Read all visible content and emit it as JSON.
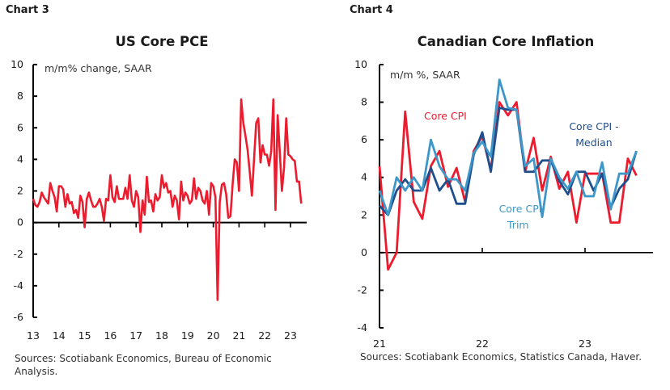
{
  "chart_data": [
    {
      "type": "line",
      "label": "Chart 3",
      "title": "US Core PCE",
      "ylabel": "m/m% change, SAAR",
      "xlabel": "",
      "ylim": [
        -6,
        10
      ],
      "yticks": [
        -6,
        -4,
        -2,
        0,
        2,
        4,
        6,
        8,
        10
      ],
      "xtick_labels": [
        "13",
        "14",
        "15",
        "16",
        "17",
        "18",
        "19",
        "20",
        "21",
        "22",
        "23"
      ],
      "x_start": "2013-01",
      "frequency": "monthly",
      "grid": false,
      "legend": "none",
      "source": "Sources: Scotiabank Economics, Bureau of Economic Analysis.",
      "series": [
        {
          "name": "US Core PCE",
          "color": "#ec1c2e",
          "values": [
            1.5,
            1.1,
            1.0,
            1.3,
            1.9,
            1.6,
            1.4,
            1.2,
            2.5,
            2.0,
            1.6,
            0.7,
            2.3,
            2.3,
            2.1,
            1.0,
            1.8,
            1.2,
            1.3,
            0.6,
            0.8,
            0.3,
            1.7,
            1.3,
            -0.3,
            1.5,
            1.9,
            1.4,
            1.0,
            1.0,
            1.2,
            1.5,
            1.0,
            0.1,
            1.5,
            1.4,
            3.0,
            1.6,
            1.3,
            2.3,
            1.5,
            1.5,
            1.5,
            2.2,
            1.5,
            3.0,
            1.4,
            1.0,
            2.0,
            1.6,
            -0.6,
            1.4,
            0.5,
            2.9,
            1.3,
            1.4,
            0.7,
            1.8,
            1.4,
            1.6,
            3.0,
            2.2,
            2.5,
            1.9,
            2.0,
            1.0,
            1.7,
            1.4,
            0.2,
            2.6,
            1.4,
            1.9,
            1.7,
            1.2,
            1.4,
            2.8,
            1.5,
            2.2,
            2.0,
            1.4,
            1.2,
            2.0,
            0.5,
            2.5,
            2.3,
            1.6,
            -4.9,
            1.3,
            2.4,
            2.5,
            1.8,
            0.3,
            0.4,
            2.4,
            4.0,
            3.8,
            2.0,
            7.8,
            6.3,
            5.5,
            4.6,
            3.2,
            1.7,
            4.0,
            6.3,
            6.6,
            3.8,
            4.9,
            4.3,
            4.3,
            3.6,
            4.5,
            7.8,
            0.8,
            6.8,
            4.5,
            2.0,
            3.5,
            6.6,
            4.3,
            4.2,
            4.0,
            3.9,
            2.6,
            2.6,
            1.2
          ]
        }
      ]
    },
    {
      "type": "line",
      "label": "Chart 4",
      "title": "Canadian Core Inflation",
      "ylabel": "m/m %, SAAR",
      "xlabel": "",
      "ylim": [
        -4,
        10
      ],
      "yticks": [
        -4,
        -2,
        0,
        2,
        4,
        6,
        8,
        10
      ],
      "xtick_labels": [
        "21",
        "22",
        "23"
      ],
      "x_start": "2021-01",
      "frequency": "monthly",
      "grid": false,
      "legend": "inline-annotations",
      "source": "Sources: Scotiabank Economics, Statistics Canada, Haver.",
      "series": [
        {
          "name": "Core CPI",
          "color": "#ec1c2e",
          "annotation": "Core CPI",
          "values": [
            4.6,
            -0.9,
            0.0,
            7.5,
            2.7,
            1.8,
            4.6,
            5.4,
            3.5,
            4.5,
            2.7,
            5.4,
            6.2,
            4.4,
            8.0,
            7.3,
            8.0,
            4.3,
            6.1,
            3.3,
            5.1,
            3.4,
            4.3,
            1.6,
            4.2,
            4.2,
            4.2,
            1.6,
            1.6,
            5.0,
            4.1
          ]
        },
        {
          "name": "Core CPI - Median",
          "color": "#1f4e8c",
          "annotation": "Core CPI - Median",
          "values": [
            2.5,
            2.0,
            3.3,
            3.9,
            3.3,
            3.3,
            4.5,
            3.3,
            3.9,
            2.6,
            2.6,
            5.2,
            6.4,
            4.3,
            7.7,
            7.6,
            7.6,
            4.3,
            4.3,
            4.9,
            4.9,
            3.8,
            3.1,
            4.3,
            4.3,
            3.3,
            4.2,
            2.4,
            3.4,
            3.9,
            5.4
          ]
        },
        {
          "name": "Core CPI Trim",
          "color": "#3d97c9",
          "annotation": "Core CPI Trim",
          "values": [
            3.3,
            2.0,
            4.0,
            3.3,
            4.0,
            3.3,
            6.0,
            4.6,
            3.9,
            3.9,
            3.3,
            5.3,
            5.9,
            5.1,
            9.2,
            7.7,
            7.6,
            4.6,
            5.0,
            1.9,
            5.0,
            4.0,
            3.4,
            4.3,
            3.0,
            3.0,
            4.8,
            2.3,
            4.2,
            4.2,
            5.4
          ]
        }
      ]
    }
  ]
}
